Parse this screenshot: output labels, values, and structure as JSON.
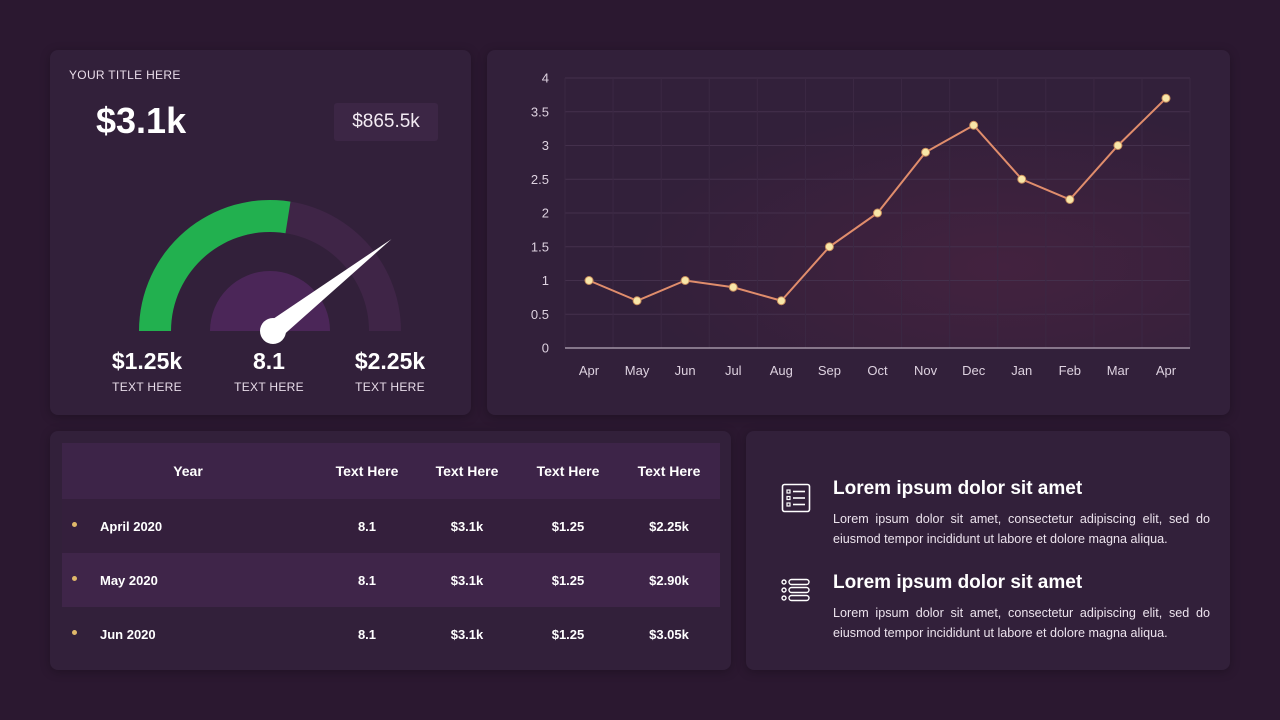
{
  "gauge_card": {
    "title": "YOUR TITLE HERE",
    "main_value": "$3.1k",
    "secondary_value": "$865.5k",
    "gauge_level_fraction": 0.55,
    "stats": [
      {
        "value": "$1.25k",
        "label": "TEXT HERE"
      },
      {
        "value": "8.1",
        "label": "TEXT HERE"
      },
      {
        "value": "$2.25k",
        "label": "TEXT HERE"
      }
    ],
    "colors": {
      "filled": "#22b04f",
      "track": "#3f2547",
      "inner": "#4b2658",
      "needle": "#ffffff"
    }
  },
  "chart_data": {
    "type": "line",
    "categories": [
      "Apr",
      "May",
      "Jun",
      "Jul",
      "Aug",
      "Sep",
      "Oct",
      "Nov",
      "Dec",
      "Jan",
      "Feb",
      "Mar",
      "Apr"
    ],
    "series": [
      {
        "values": [
          1,
          0.7,
          1,
          0.9,
          0.7,
          1.5,
          2,
          2.9,
          3.3,
          2.5,
          2.2,
          3,
          3.7
        ]
      }
    ],
    "yticks": [
      "0",
      "0.5",
      "1",
      "1.5",
      "2",
      "2.5",
      "3",
      "3.5",
      "4"
    ],
    "ylim": [
      0,
      4
    ],
    "grid": true,
    "line_color": "#e08d6c",
    "marker_color": "#f8e6a8"
  },
  "table": {
    "headers": [
      "Year",
      "Text Here",
      "Text Here",
      "Text Here",
      "Text Here"
    ],
    "rows": [
      {
        "label": "April 2020",
        "cells": [
          "8.1",
          "$3.1k",
          "$1.25",
          "$2.25k"
        ]
      },
      {
        "label": "May 2020",
        "cells": [
          "8.1",
          "$3.1k",
          "$1.25",
          "$2.90k"
        ]
      },
      {
        "label": "Jun 2020",
        "cells": [
          "8.1",
          "$3.1k",
          "$1.25",
          "$3.05k"
        ]
      }
    ]
  },
  "info": [
    {
      "icon": "checklist-icon",
      "heading": "Lorem ipsum dolor sit amet",
      "body": "Lorem ipsum dolor sit amet, consectetur adipiscing elit, sed do eiusmod tempor incididunt ut labore et dolore magna aliqua."
    },
    {
      "icon": "list-icon",
      "heading": "Lorem ipsum dolor sit amet",
      "body": "Lorem ipsum dolor sit amet, consectetur adipiscing elit, sed do eiusmod tempor incididunt ut labore et dolore magna aliqua."
    }
  ]
}
